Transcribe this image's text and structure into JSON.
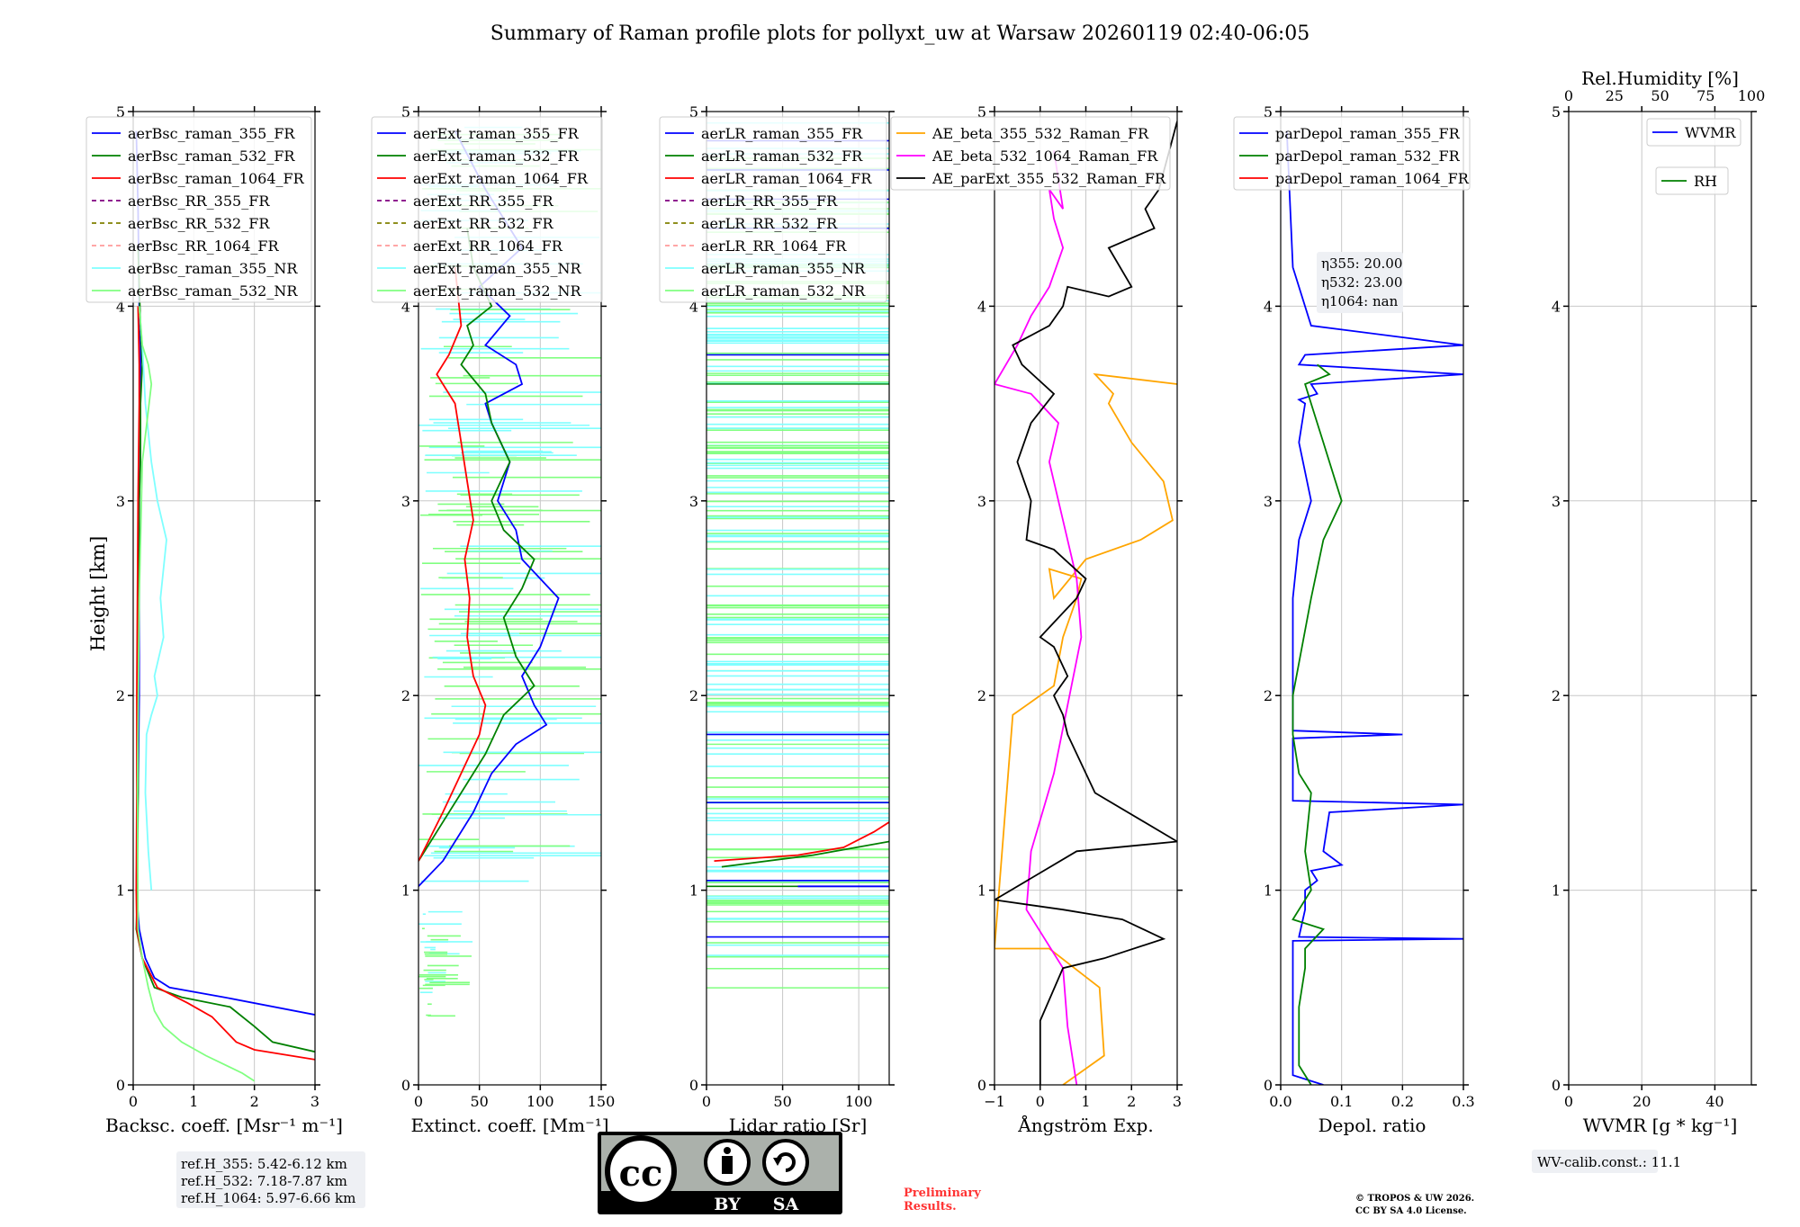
{
  "title": "Summary of Raman profile plots for pollyxt_uw at Warsaw 20260119 02:40-06:05",
  "ylabel": "Height [km]",
  "chart_data": [
    {
      "id": "bsc",
      "type": "line",
      "xlabel": "Backsc. coeff. [Msr⁻¹ m⁻¹]",
      "xlim": [
        0,
        3
      ],
      "ylim": [
        0,
        5
      ],
      "xticks": [
        "0",
        "1",
        "2",
        "3"
      ],
      "yticks": [
        "0",
        "1",
        "2",
        "3",
        "4",
        "5"
      ],
      "legend": [
        "aerBsc_raman_355_FR",
        "aerBsc_raman_532_FR",
        "aerBsc_raman_1064_FR",
        "aerBsc_RR_355_FR",
        "aerBsc_RR_532_FR",
        "aerBsc_RR_1064_FR",
        "aerBsc_raman_355_NR",
        "aerBsc_raman_532_NR"
      ],
      "series": [
        {
          "name": "aerBsc_raman_355_FR",
          "color": "#0000ff",
          "x": [
            3.0,
            1.5,
            0.6,
            0.35,
            0.2,
            0.1,
            0.05,
            0.08,
            0.1,
            0.1,
            0.1,
            0.1,
            0.1,
            0.12,
            0.12,
            0.12,
            0.1,
            0.08,
            0.05
          ],
          "y": [
            0.36,
            0.45,
            0.5,
            0.55,
            0.65,
            0.8,
            1.0,
            1.5,
            2.0,
            2.2,
            2.5,
            2.8,
            3.0,
            3.3,
            3.6,
            3.8,
            4.0,
            4.5,
            4.9
          ]
        },
        {
          "name": "aerBsc_raman_532_FR",
          "color": "#008000",
          "x": [
            3.0,
            2.3,
            2.0,
            1.6,
            0.8,
            0.35,
            0.15,
            0.05,
            0.07,
            0.08,
            0.08,
            0.09,
            0.1,
            0.12,
            0.12,
            0.15,
            0.12,
            0.08
          ],
          "y": [
            0.17,
            0.22,
            0.3,
            0.4,
            0.45,
            0.5,
            0.65,
            0.8,
            1.0,
            1.5,
            2.0,
            2.5,
            3.0,
            3.2,
            3.5,
            3.7,
            3.9,
            4.3
          ]
        },
        {
          "name": "aerBsc_raman_1064_FR",
          "color": "#ff0000",
          "x": [
            3.0,
            2.0,
            1.7,
            1.3,
            0.9,
            0.4,
            0.15,
            0.06,
            0.05,
            0.06,
            0.06,
            0.07,
            0.08,
            0.1,
            0.1,
            0.08
          ],
          "y": [
            0.13,
            0.18,
            0.22,
            0.35,
            0.42,
            0.5,
            0.65,
            0.8,
            1.0,
            1.5,
            2.0,
            2.5,
            3.0,
            3.5,
            3.7,
            4.0
          ]
        },
        {
          "name": "aerBsc_raman_355_NR",
          "color": "#7fffff",
          "x": [
            0.3,
            0.25,
            0.2,
            0.22,
            0.3,
            0.4,
            0.35,
            0.5,
            0.45,
            0.55,
            0.4,
            0.3,
            0.2,
            0.15,
            0.1
          ],
          "y": [
            1.0,
            1.2,
            1.5,
            1.8,
            1.9,
            2.0,
            2.1,
            2.3,
            2.5,
            2.8,
            3.0,
            3.2,
            3.5,
            3.8,
            4.0
          ]
        },
        {
          "name": "aerBsc_raman_532_NR",
          "color": "#80ff80",
          "x": [
            2.0,
            1.8,
            1.2,
            0.8,
            0.5,
            0.35,
            0.25,
            0.15,
            0.08,
            0.07,
            0.1,
            0.15,
            0.3,
            0.25,
            0.15,
            0.1
          ],
          "y": [
            0.02,
            0.06,
            0.15,
            0.22,
            0.3,
            0.38,
            0.5,
            0.65,
            0.8,
            1.5,
            2.5,
            3.2,
            3.6,
            3.7,
            3.8,
            4.0
          ]
        }
      ]
    },
    {
      "id": "ext",
      "type": "line",
      "xlabel": "Extinct. coeff. [Mm⁻¹]",
      "xlim": [
        0,
        150
      ],
      "ylim": [
        0,
        5
      ],
      "xticks": [
        "0",
        "50",
        "100",
        "150"
      ],
      "yticks": [
        "0",
        "1",
        "2",
        "3",
        "4",
        "5"
      ],
      "legend": [
        "aerExt_raman_355_FR",
        "aerExt_raman_532_FR",
        "aerExt_raman_1064_FR",
        "aerExt_RR_355_FR",
        "aerExt_RR_532_FR",
        "aerExt_RR_1064_FR",
        "aerExt_raman_355_NR",
        "aerExt_raman_532_NR"
      ],
      "series": [
        {
          "name": "aerExt_raman_355_FR",
          "color": "#0000ff",
          "x": [
            0,
            20,
            45,
            60,
            80,
            105,
            95,
            85,
            100,
            115,
            85,
            80,
            65,
            75,
            60,
            55,
            85,
            80,
            55,
            75,
            50,
            85,
            55,
            30
          ],
          "y": [
            1.02,
            1.15,
            1.4,
            1.6,
            1.75,
            1.85,
            1.95,
            2.1,
            2.25,
            2.5,
            2.7,
            2.85,
            3.0,
            3.2,
            3.4,
            3.5,
            3.6,
            3.7,
            3.8,
            3.95,
            4.1,
            4.3,
            4.6,
            4.9
          ]
        },
        {
          "name": "aerExt_raman_532_FR",
          "color": "#008000",
          "x": [
            0,
            15,
            35,
            55,
            70,
            95,
            80,
            70,
            85,
            95,
            70,
            60,
            75,
            60,
            55,
            35,
            45,
            40,
            60,
            45,
            40
          ],
          "y": [
            1.15,
            1.3,
            1.5,
            1.7,
            1.9,
            2.05,
            2.2,
            2.4,
            2.55,
            2.7,
            2.85,
            3.0,
            3.2,
            3.4,
            3.55,
            3.7,
            3.8,
            3.9,
            4.0,
            4.2,
            4.4
          ]
        },
        {
          "name": "aerExt_raman_1064_FR",
          "color": "#ff0000",
          "x": [
            0,
            20,
            35,
            50,
            55,
            45,
            40,
            42,
            38,
            45,
            40,
            35,
            30,
            20,
            15,
            25,
            35,
            30
          ],
          "y": [
            1.15,
            1.4,
            1.6,
            1.8,
            1.95,
            2.1,
            2.3,
            2.5,
            2.7,
            2.9,
            3.1,
            3.3,
            3.5,
            3.6,
            3.65,
            3.75,
            3.9,
            4.2
          ]
        }
      ]
    },
    {
      "id": "lr",
      "type": "line",
      "xlabel": "Lidar ratio [Sr]",
      "xlim": [
        0,
        120
      ],
      "ylim": [
        0,
        5
      ],
      "xticks": [
        "0",
        "50",
        "100"
      ],
      "yticks": [
        "0",
        "1",
        "2",
        "3",
        "4",
        "5"
      ],
      "legend": [
        "aerLR_raman_355_FR",
        "aerLR_raman_532_FR",
        "aerLR_raman_1064_FR",
        "aerLR_RR_355_FR",
        "aerLR_RR_532_FR",
        "aerLR_RR_1064_FR",
        "aerLR_raman_355_NR",
        "aerLR_raman_532_NR"
      ],
      "series": [
        {
          "name": "aerLR_raman_1064_FR",
          "color": "#ff0000",
          "x": [
            5,
            60,
            90,
            110,
            120
          ],
          "y": [
            1.15,
            1.18,
            1.22,
            1.3,
            1.35
          ]
        },
        {
          "name": "aerLR_raman_532_FR",
          "color": "#008000",
          "x": [
            10,
            70,
            120
          ],
          "y": [
            1.12,
            1.18,
            1.25
          ]
        },
        {
          "name": "aerLR_raman_355_FR",
          "color": "#0000ff",
          "x": [
            60,
            120
          ],
          "y": [
            1.02,
            1.02
          ]
        }
      ]
    },
    {
      "id": "ang",
      "type": "line",
      "xlabel": "Ångström Exp.",
      "xlim": [
        -1,
        3
      ],
      "ylim": [
        0,
        5
      ],
      "xticks": [
        "−1",
        "0",
        "1",
        "2",
        "3"
      ],
      "yticks": [
        "0",
        "1",
        "2",
        "3",
        "4",
        "5"
      ],
      "legend": [
        "AE_beta_355_532_Raman_FR",
        "AE_beta_532_1064_Raman_FR",
        "AE_parExt_355_532_Raman_FR"
      ],
      "series": [
        {
          "name": "AE_beta_355_532_Raman_FR",
          "color": "#ffa500",
          "x": [
            0.5,
            1.4,
            1.3,
            0.2,
            -1.0,
            -0.6,
            0.3,
            0.5,
            0.8,
            0.9,
            0.2,
            0.3,
            1.0,
            2.2,
            2.9,
            2.7,
            2.0,
            1.5,
            1.6,
            1.2,
            3.0
          ],
          "y": [
            0.0,
            0.15,
            0.5,
            0.7,
            0.7,
            1.9,
            2.05,
            2.3,
            2.5,
            2.6,
            2.65,
            2.5,
            2.7,
            2.8,
            2.9,
            3.1,
            3.3,
            3.5,
            3.55,
            3.65,
            3.6
          ]
        },
        {
          "name": "AE_beta_532_1064_Raman_FR",
          "color": "#ff00ff",
          "x": [
            0.8,
            0.6,
            0.5,
            -0.3,
            -0.2,
            0.3,
            0.9,
            0.8,
            0.5,
            0.2,
            0.4,
            -0.2,
            -1.0,
            -0.5,
            -0.2,
            0.2,
            0.5,
            0.3,
            0.2,
            0.5,
            0.3
          ],
          "y": [
            0.0,
            0.3,
            0.6,
            0.9,
            1.2,
            1.6,
            2.3,
            2.6,
            2.9,
            3.2,
            3.4,
            3.55,
            3.6,
            3.8,
            3.95,
            4.1,
            4.3,
            4.45,
            4.6,
            4.5,
            4.8
          ]
        },
        {
          "name": "AE_parExt_355_532_Raman_FR",
          "color": "#000000",
          "x": [
            0,
            0,
            0.5,
            1.4,
            2.7,
            1.8,
            0.5,
            -1.0,
            0.8,
            3.0,
            1.2,
            0.6,
            0.5,
            0.3,
            0.6,
            0.3,
            0.0,
            0.8,
            1.0,
            0.3,
            -0.3,
            -0.2,
            -0.5,
            -0.2,
            0.3,
            -0.4,
            -0.6,
            0.2,
            0.5,
            0.6,
            1.5,
            2.0,
            1.5,
            2.5,
            2.3,
            2.6,
            3.0
          ],
          "y": [
            0.0,
            0.33,
            0.6,
            0.65,
            0.75,
            0.85,
            0.9,
            0.95,
            1.2,
            1.25,
            1.5,
            1.8,
            1.9,
            2.0,
            2.1,
            2.25,
            2.3,
            2.5,
            2.6,
            2.75,
            2.8,
            3.0,
            3.2,
            3.4,
            3.55,
            3.7,
            3.8,
            3.9,
            4.0,
            4.1,
            4.05,
            4.1,
            4.3,
            4.4,
            4.5,
            4.6,
            4.95
          ]
        }
      ]
    },
    {
      "id": "dep",
      "type": "line",
      "xlabel": "Depol. ratio",
      "xlim": [
        0,
        0.3
      ],
      "ylim": [
        0,
        5
      ],
      "xticks": [
        "0.0",
        "0.1",
        "0.2",
        "0.3"
      ],
      "yticks": [
        "0",
        "1",
        "2",
        "3",
        "4",
        "5"
      ],
      "legend": [
        "parDepol_raman_355_FR",
        "parDepol_raman_532_FR",
        "parDepol_raman_1064_FR"
      ],
      "annotation": [
        "η355: 20.00",
        "η532: 23.00",
        "η1064: nan"
      ],
      "series": [
        {
          "name": "parDepol_raman_355_FR",
          "color": "#0000ff",
          "x": [
            0.07,
            0.02,
            0.02,
            0.02,
            0.3,
            0.03,
            0.04,
            0.04,
            0.06,
            0.05,
            0.1,
            0.07,
            0.08,
            0.3,
            0.02,
            0.02,
            0.2,
            0.02,
            0.02,
            0.02,
            0.03,
            0.05,
            0.03,
            0.04,
            0.03,
            0.06,
            0.05,
            0.3,
            0.03,
            0.04,
            0.3,
            0.05,
            0.02,
            0.01
          ],
          "y": [
            0.0,
            0.05,
            0.4,
            0.74,
            0.75,
            0.76,
            0.9,
            1.0,
            1.05,
            1.1,
            1.13,
            1.2,
            1.4,
            1.44,
            1.46,
            1.78,
            1.8,
            1.82,
            2.0,
            2.5,
            2.8,
            3.0,
            3.3,
            3.5,
            3.52,
            3.55,
            3.6,
            3.65,
            3.7,
            3.75,
            3.8,
            3.9,
            4.2,
            4.9
          ]
        },
        {
          "name": "parDepol_raman_532_FR",
          "color": "#008000",
          "x": [
            0.05,
            0.03,
            0.03,
            0.04,
            0.04,
            0.07,
            0.02,
            0.05,
            0.04,
            0.05,
            0.03,
            0.02,
            0.02,
            0.05,
            0.07,
            0.1,
            0.09,
            0.07,
            0.05,
            0.04,
            0.08,
            0.06
          ],
          "y": [
            0.0,
            0.1,
            0.4,
            0.6,
            0.7,
            0.8,
            0.85,
            1.0,
            1.2,
            1.5,
            1.6,
            1.8,
            2.0,
            2.5,
            2.8,
            3.0,
            3.1,
            3.3,
            3.5,
            3.6,
            3.65,
            3.7
          ]
        }
      ]
    },
    {
      "id": "wv",
      "type": "line",
      "xlabel": "WVMR [g * kg⁻¹]",
      "top_xlabel": "Rel.Humidity [%]",
      "xlim": [
        0,
        50
      ],
      "ylim": [
        0,
        5
      ],
      "xticks": [
        "0",
        "20",
        "40"
      ],
      "top_xticks": [
        "0",
        "25",
        "50",
        "75",
        "100"
      ],
      "yticks": [
        "0",
        "1",
        "2",
        "3",
        "4",
        "5"
      ],
      "legend": [
        "WVMR",
        "RH"
      ],
      "series": []
    }
  ],
  "ref_heights": [
    "ref.H_355: 5.42-6.12 km",
    "ref.H_532: 7.18-7.87 km",
    "ref.H_1064: 5.97-6.66 km"
  ],
  "wv_calib": "WV-calib.const.: 11.1",
  "license_badge": {
    "left": "BY",
    "right": "SA",
    "logo": "cc"
  },
  "preliminary": [
    "Preliminary",
    "Results."
  ],
  "copyright": [
    "© TROPOS & UW 2026.",
    "CC BY SA 4.0 License."
  ]
}
